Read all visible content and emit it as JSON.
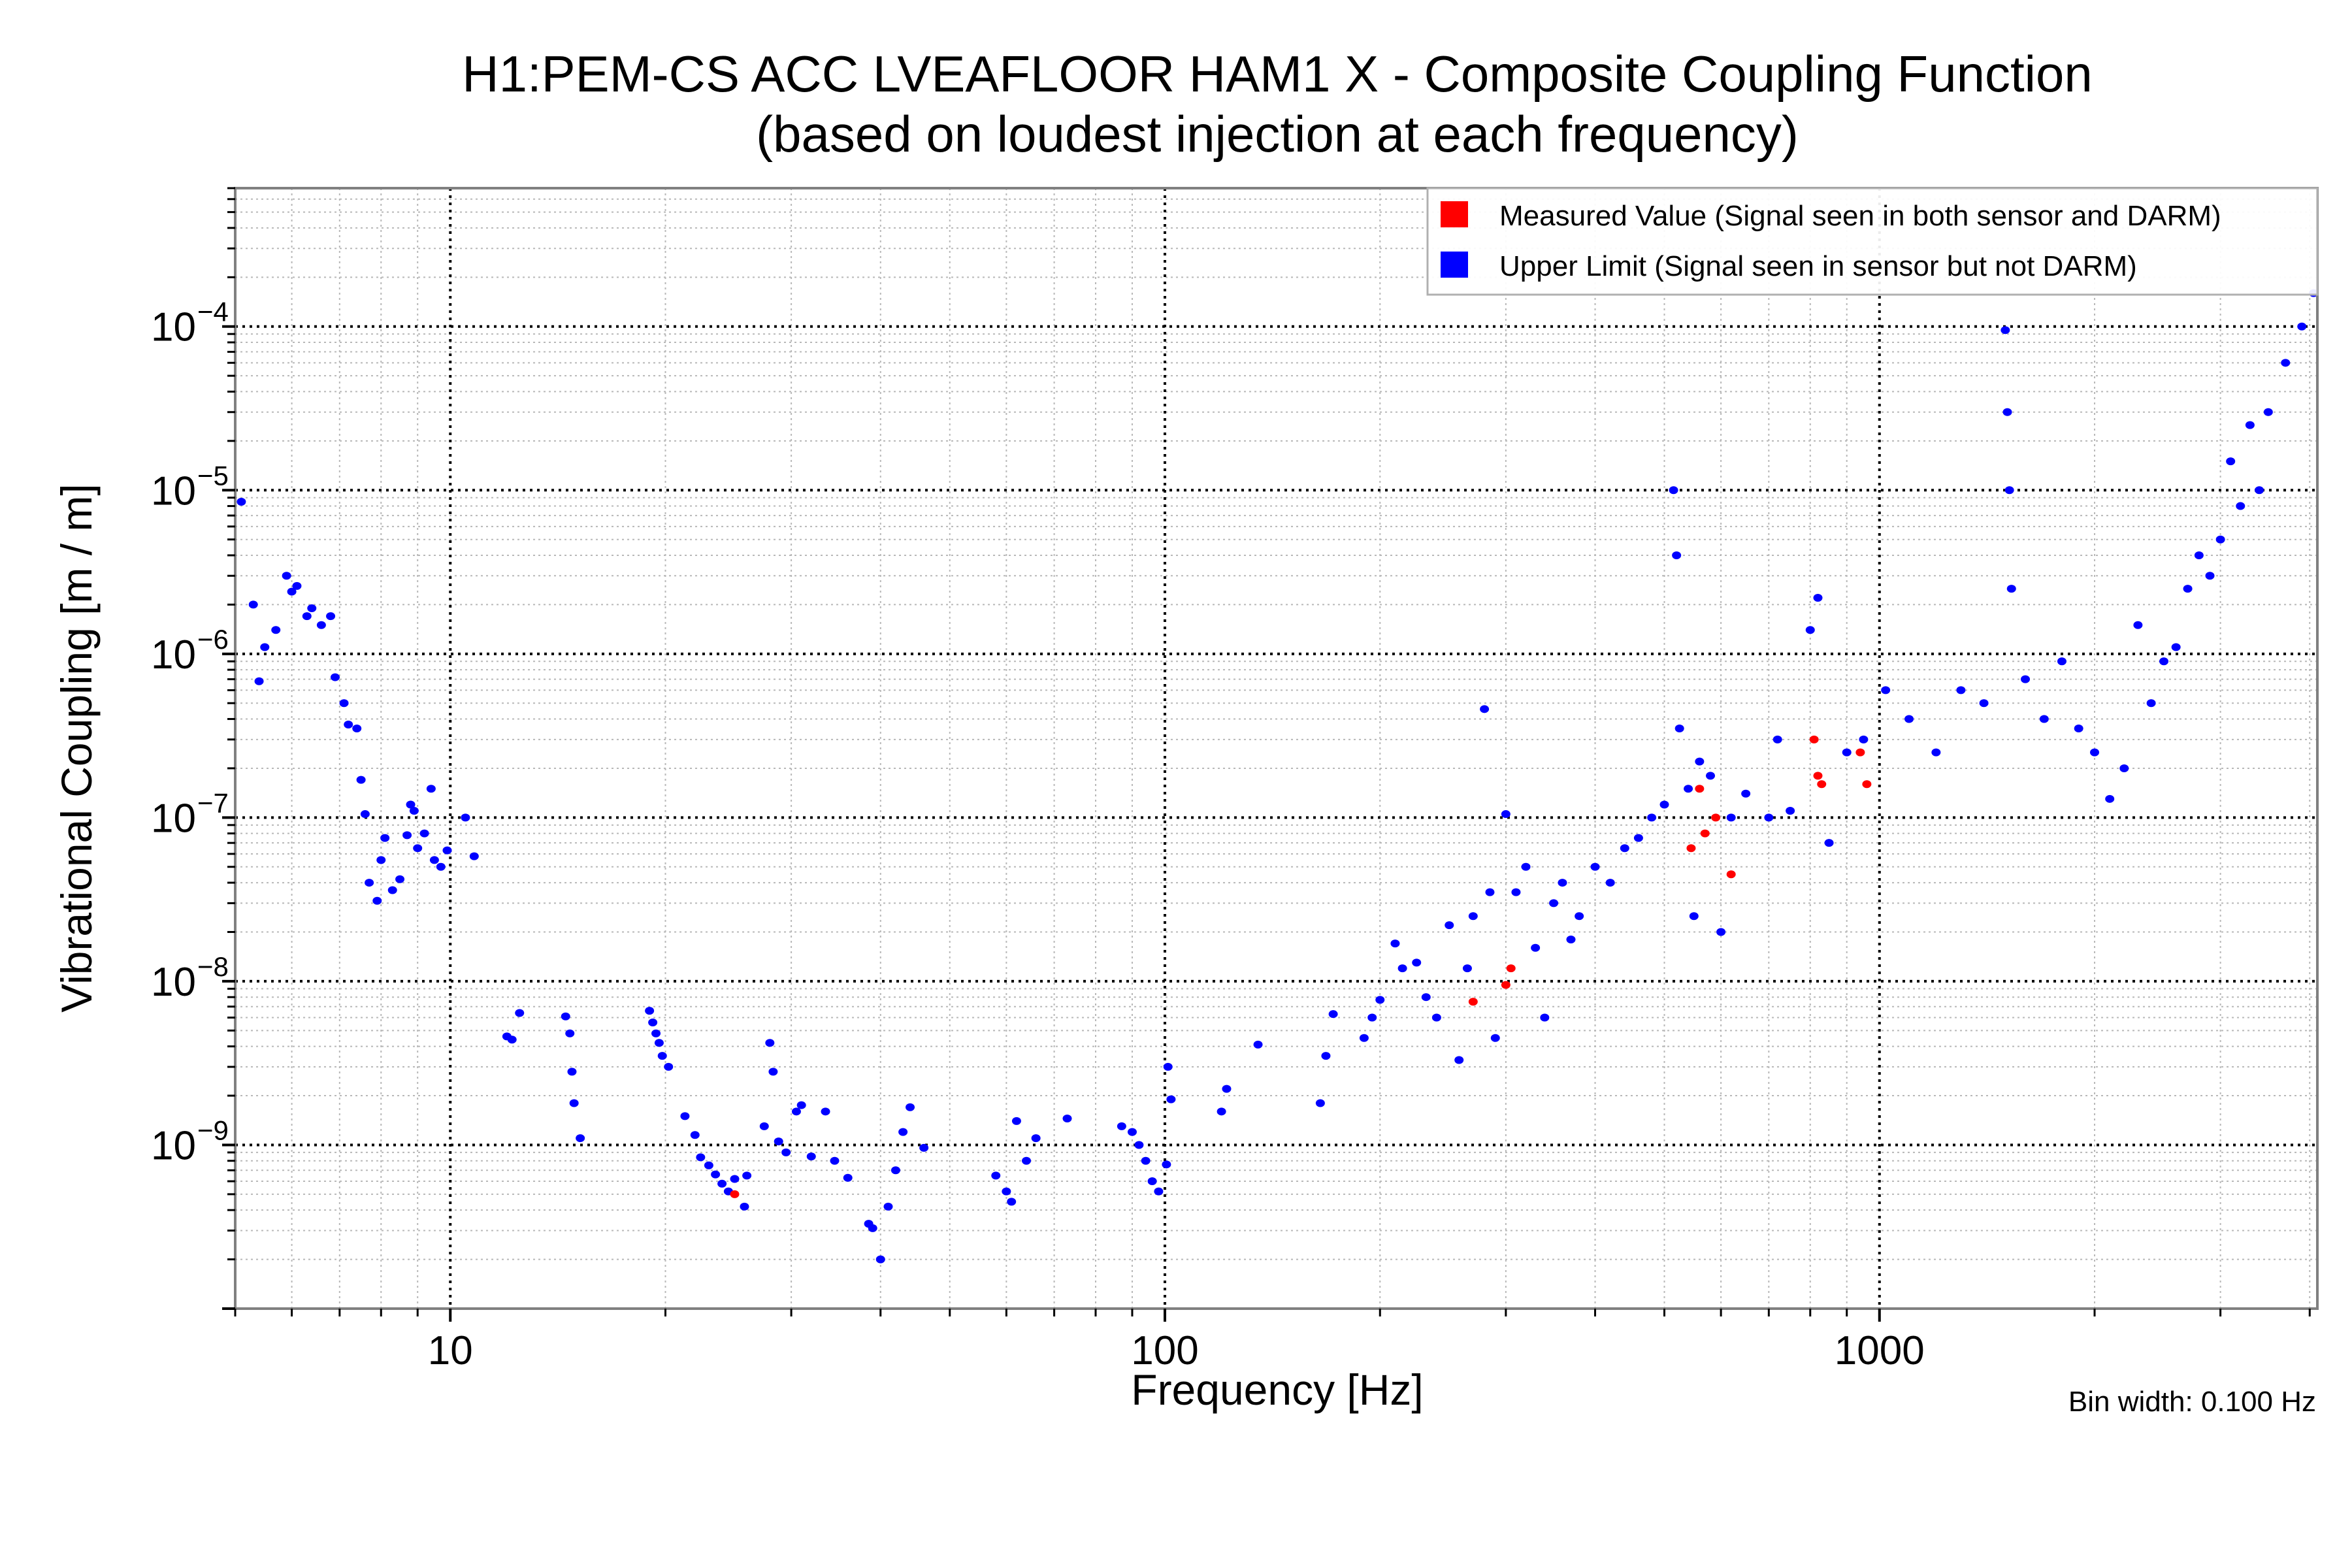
{
  "chart_data": {
    "type": "scatter",
    "title": "H1:PEM-CS ACC LVEAFLOOR HAM1 X - Composite Coupling Function",
    "subtitle": "(based on loudest injection at each frequency)",
    "xlabel": "Frequency [Hz]",
    "ylabel": "Vibrational Coupling [m / m]",
    "xscale": "log",
    "yscale": "log",
    "xlim": [
      5.0,
      4100
    ],
    "ylim": [
      1e-10,
      0.0007
    ],
    "x_ticks": [
      {
        "value": 10,
        "label": "10"
      },
      {
        "value": 100,
        "label": "100"
      },
      {
        "value": 1000,
        "label": "1000"
      }
    ],
    "y_ticks": [
      {
        "value": 0.0001,
        "base": "10",
        "exp": "−4"
      },
      {
        "value": 1e-05,
        "base": "10",
        "exp": "−5"
      },
      {
        "value": 1e-06,
        "base": "10",
        "exp": "−6"
      },
      {
        "value": 1e-07,
        "base": "10",
        "exp": "−7"
      },
      {
        "value": 1e-08,
        "base": "10",
        "exp": "−8"
      },
      {
        "value": 1e-09,
        "base": "10",
        "exp": "−9"
      }
    ],
    "grid": true,
    "legend": {
      "placement": "top-right",
      "entries": [
        {
          "label": "Measured Value (Signal seen in both sensor and DARM)",
          "color": "#ff0000"
        },
        {
          "label": "Upper Limit (Signal seen in sensor but not DARM)",
          "color": "#0000ff"
        }
      ]
    },
    "annotation": "Bin width: 0.100 Hz",
    "series": [
      {
        "name": "Upper Limit (Signal seen in sensor but not DARM)",
        "color": "#0000ff",
        "points": [
          [
            5.1,
            8.5e-06
          ],
          [
            5.3,
            2e-06
          ],
          [
            5.4,
            6.8e-07
          ],
          [
            5.5,
            1.1e-06
          ],
          [
            5.7,
            1.4e-06
          ],
          [
            5.9,
            3e-06
          ],
          [
            6.0,
            2.4e-06
          ],
          [
            6.1,
            2.6e-06
          ],
          [
            6.3,
            1.7e-06
          ],
          [
            6.4,
            1.9e-06
          ],
          [
            6.6,
            1.5e-06
          ],
          [
            6.8,
            1.7e-06
          ],
          [
            6.9,
            7.2e-07
          ],
          [
            7.1,
            5e-07
          ],
          [
            7.2,
            3.7e-07
          ],
          [
            7.4,
            3.5e-07
          ],
          [
            7.5,
            1.7e-07
          ],
          [
            7.6,
            1.05e-07
          ],
          [
            7.7,
            4e-08
          ],
          [
            7.9,
            3.1e-08
          ],
          [
            8.0,
            5.5e-08
          ],
          [
            8.1,
            7.5e-08
          ],
          [
            8.3,
            3.6e-08
          ],
          [
            8.5,
            4.2e-08
          ],
          [
            8.7,
            7.8e-08
          ],
          [
            8.8,
            1.2e-07
          ],
          [
            8.9,
            1.1e-07
          ],
          [
            9.0,
            6.5e-08
          ],
          [
            9.2,
            8e-08
          ],
          [
            9.4,
            1.5e-07
          ],
          [
            9.5,
            5.5e-08
          ],
          [
            9.7,
            5e-08
          ],
          [
            9.9,
            6.3e-08
          ],
          [
            10.5,
            1e-07
          ],
          [
            10.8,
            5.8e-08
          ],
          [
            12.0,
            4.6e-09
          ],
          [
            12.2,
            4.4e-09
          ],
          [
            12.5,
            6.4e-09
          ],
          [
            14.5,
            6.1e-09
          ],
          [
            14.7,
            4.8e-09
          ],
          [
            14.8,
            2.8e-09
          ],
          [
            14.9,
            1.8e-09
          ],
          [
            15.2,
            1.1e-09
          ],
          [
            19.0,
            6.6e-09
          ],
          [
            19.2,
            5.6e-09
          ],
          [
            19.4,
            4.8e-09
          ],
          [
            19.6,
            4.2e-09
          ],
          [
            19.8,
            3.5e-09
          ],
          [
            20.2,
            3e-09
          ],
          [
            21.3,
            1.5e-09
          ],
          [
            22.0,
            1.15e-09
          ],
          [
            22.4,
            8.4e-10
          ],
          [
            23.0,
            7.5e-10
          ],
          [
            23.5,
            6.6e-10
          ],
          [
            24.0,
            5.8e-10
          ],
          [
            24.5,
            5.2e-10
          ],
          [
            25.0,
            6.2e-10
          ],
          [
            25.8,
            4.2e-10
          ],
          [
            26.0,
            6.5e-10
          ],
          [
            27.5,
            1.3e-09
          ],
          [
            28.0,
            4.2e-09
          ],
          [
            28.3,
            2.8e-09
          ],
          [
            28.8,
            1.05e-09
          ],
          [
            29.5,
            9e-10
          ],
          [
            30.5,
            1.6e-09
          ],
          [
            31.0,
            1.75e-09
          ],
          [
            32.0,
            8.5e-10
          ],
          [
            33.5,
            1.6e-09
          ],
          [
            34.5,
            8e-10
          ],
          [
            36.0,
            6.3e-10
          ],
          [
            38.5,
            3.3e-10
          ],
          [
            39.0,
            3.1e-10
          ],
          [
            40.0,
            2e-10
          ],
          [
            41.0,
            4.2e-10
          ],
          [
            42.0,
            7e-10
          ],
          [
            43.0,
            1.2e-09
          ],
          [
            44.0,
            1.7e-09
          ],
          [
            46.0,
            9.6e-10
          ],
          [
            58.0,
            6.5e-10
          ],
          [
            60.0,
            5.2e-10
          ],
          [
            61.0,
            4.5e-10
          ],
          [
            62.0,
            1.4e-09
          ],
          [
            64.0,
            8e-10
          ],
          [
            66.0,
            1.1e-09
          ],
          [
            73.0,
            1.45e-09
          ],
          [
            87.0,
            1.3e-09
          ],
          [
            90.0,
            1.2e-09
          ],
          [
            92.0,
            1e-09
          ],
          [
            94.0,
            8e-10
          ],
          [
            96.0,
            6e-10
          ],
          [
            98.0,
            5.2e-10
          ],
          [
            100.5,
            7.6e-10
          ],
          [
            101.0,
            3e-09
          ],
          [
            102.0,
            1.9e-09
          ],
          [
            120.0,
            1.6e-09
          ],
          [
            122.0,
            2.2e-09
          ],
          [
            135.0,
            4.1e-09
          ],
          [
            165.0,
            1.8e-09
          ],
          [
            168.0,
            3.5e-09
          ],
          [
            172.0,
            6.3e-09
          ],
          [
            190.0,
            4.5e-09
          ],
          [
            195.0,
            6e-09
          ],
          [
            200.0,
            7.7e-09
          ],
          [
            210.0,
            1.7e-08
          ],
          [
            215.0,
            1.2e-08
          ],
          [
            225.0,
            1.3e-08
          ],
          [
            232.0,
            8e-09
          ],
          [
            240.0,
            6e-09
          ],
          [
            250.0,
            2.2e-08
          ],
          [
            258.0,
            3.3e-09
          ],
          [
            265.0,
            1.2e-08
          ],
          [
            270.0,
            2.5e-08
          ],
          [
            280.0,
            4.6e-07
          ],
          [
            285.0,
            3.5e-08
          ],
          [
            290.0,
            4.5e-09
          ],
          [
            300.0,
            1.05e-07
          ],
          [
            310.0,
            3.5e-08
          ],
          [
            320.0,
            5e-08
          ],
          [
            330.0,
            1.6e-08
          ],
          [
            340.0,
            6e-09
          ],
          [
            350.0,
            3e-08
          ],
          [
            360.0,
            4e-08
          ],
          [
            370.0,
            1.8e-08
          ],
          [
            380.0,
            2.5e-08
          ],
          [
            400.0,
            5e-08
          ],
          [
            420.0,
            4e-08
          ],
          [
            440.0,
            6.5e-08
          ],
          [
            460.0,
            7.5e-08
          ],
          [
            480.0,
            1e-07
          ],
          [
            500.0,
            1.2e-07
          ],
          [
            515.0,
            1e-05
          ],
          [
            520.0,
            4e-06
          ],
          [
            525.0,
            3.5e-07
          ],
          [
            540.0,
            1.5e-07
          ],
          [
            550.0,
            2.5e-08
          ],
          [
            560.0,
            2.2e-07
          ],
          [
            580.0,
            1.8e-07
          ],
          [
            600.0,
            2e-08
          ],
          [
            620.0,
            1e-07
          ],
          [
            650.0,
            1.4e-07
          ],
          [
            700.0,
            1e-07
          ],
          [
            720.0,
            3e-07
          ],
          [
            750.0,
            1.1e-07
          ],
          [
            800.0,
            1.4e-06
          ],
          [
            820.0,
            2.2e-06
          ],
          [
            850.0,
            7e-08
          ],
          [
            900.0,
            2.5e-07
          ],
          [
            950.0,
            3e-07
          ],
          [
            1020.0,
            6e-07
          ],
          [
            1100.0,
            4e-07
          ],
          [
            1200.0,
            2.5e-07
          ],
          [
            1300.0,
            6e-07
          ],
          [
            1400.0,
            5e-07
          ],
          [
            1500.0,
            9.5e-05
          ],
          [
            1510.0,
            3e-05
          ],
          [
            1520.0,
            1e-05
          ],
          [
            1530.0,
            2.5e-06
          ],
          [
            1600.0,
            7e-07
          ],
          [
            1700.0,
            4e-07
          ],
          [
            1800.0,
            9e-07
          ],
          [
            1900.0,
            3.5e-07
          ],
          [
            2000.0,
            2.5e-07
          ],
          [
            2100.0,
            1.3e-07
          ],
          [
            2200.0,
            2e-07
          ],
          [
            2300.0,
            1.5e-06
          ],
          [
            2400.0,
            5e-07
          ],
          [
            2500.0,
            9e-07
          ],
          [
            2600.0,
            1.1e-06
          ],
          [
            2700.0,
            2.5e-06
          ],
          [
            2800.0,
            4e-06
          ],
          [
            2900.0,
            3e-06
          ],
          [
            3000.0,
            5e-06
          ],
          [
            3100.0,
            1.5e-05
          ],
          [
            3200.0,
            8e-06
          ],
          [
            3300.0,
            2.5e-05
          ],
          [
            3400.0,
            1e-05
          ],
          [
            3500.0,
            3e-05
          ],
          [
            3700.0,
            6e-05
          ],
          [
            3900.0,
            0.0001
          ],
          [
            4050.0,
            0.00016
          ]
        ]
      },
      {
        "name": "Measured Value (Signal seen in both sensor and DARM)",
        "color": "#ff0000",
        "points": [
          [
            25.0,
            5e-10
          ],
          [
            270.0,
            7.5e-09
          ],
          [
            300.0,
            9.5e-09
          ],
          [
            305.0,
            1.2e-08
          ],
          [
            545.0,
            6.5e-08
          ],
          [
            560.0,
            1.5e-07
          ],
          [
            570.0,
            8e-08
          ],
          [
            590.0,
            1e-07
          ],
          [
            620.0,
            4.5e-08
          ],
          [
            810.0,
            3e-07
          ],
          [
            820.0,
            1.8e-07
          ],
          [
            830.0,
            1.6e-07
          ],
          [
            940.0,
            2.5e-07
          ],
          [
            960.0,
            1.6e-07
          ]
        ]
      }
    ]
  }
}
